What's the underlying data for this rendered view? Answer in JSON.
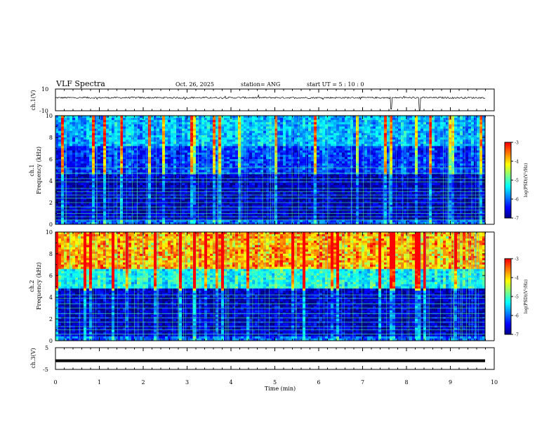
{
  "header": {
    "title": "VLF Spectra",
    "date": "Oct. 26, 2025",
    "station": "station= ANG",
    "start_ut": "start  UT =   5  : 10 : 0"
  },
  "colors": {
    "colormap": [
      "#000080",
      "#0000ff",
      "#0080ff",
      "#00ffff",
      "#80ff80",
      "#ffff00",
      "#ff8000",
      "#ff0000",
      "#ffffff"
    ],
    "line": "#000000"
  },
  "chart_data": [
    {
      "id": "ch1-waveform",
      "type": "line",
      "ylabel": "ch.1(V)",
      "ylim": [
        -10,
        10
      ],
      "yticks": [
        "10",
        "-10"
      ],
      "baseline": 2,
      "xlim": [
        0,
        10
      ]
    },
    {
      "id": "ch1-spectrogram",
      "type": "heatmap",
      "ylabel_top": "ch.1",
      "ylabel": "Frequency  (kHz)",
      "ylim": [
        0,
        10
      ],
      "yticks": [
        "0",
        "2",
        "4",
        "6",
        "8",
        "10"
      ],
      "xlim": [
        0,
        10
      ],
      "colorbar": {
        "label": "log(PSD)(V²/Hz)",
        "range": [
          -7,
          -3
        ],
        "ticks": [
          "-3",
          "-4",
          "-5",
          "-6",
          "-7"
        ]
      },
      "band_levels": [
        {
          "f_from": 0,
          "f_to": 0.5,
          "level": 0.25
        },
        {
          "f_from": 0.5,
          "f_to": 4.6,
          "level": 0.06
        },
        {
          "f_from": 4.6,
          "f_to": 7.2,
          "level": 0.2
        },
        {
          "f_from": 7.2,
          "f_to": 10,
          "level": 0.35
        }
      ],
      "tones_khz": [
        0.4,
        0.7,
        1.0,
        1.3,
        1.6,
        2.0,
        2.4,
        2.7,
        3.0,
        3.3,
        3.9,
        4.2,
        4.7,
        5.2
      ]
    },
    {
      "id": "ch2-spectrogram",
      "type": "heatmap",
      "ylabel_top": "ch.2",
      "ylabel": "Frequency  (kHz)",
      "ylim": [
        0,
        10
      ],
      "yticks": [
        "0",
        "2",
        "4",
        "6",
        "8",
        "10"
      ],
      "xlim": [
        0,
        10
      ],
      "colorbar": {
        "label": "log(PSD)(V²/Hz)",
        "range": [
          -7,
          -3
        ],
        "ticks": [
          "-3",
          "-4",
          "-5",
          "-6",
          "-7"
        ]
      },
      "band_levels": [
        {
          "f_from": 0,
          "f_to": 0.5,
          "level": 0.25
        },
        {
          "f_from": 0.5,
          "f_to": 4.8,
          "level": 0.08
        },
        {
          "f_from": 4.8,
          "f_to": 6.5,
          "level": 0.45
        },
        {
          "f_from": 6.5,
          "f_to": 10,
          "level": 0.75
        }
      ],
      "tones_khz": [
        0.6,
        1.0,
        1.3,
        1.7,
        2.1,
        2.5,
        3.0,
        3.4,
        3.9,
        4.2
      ]
    },
    {
      "id": "ch3-waveform",
      "type": "line",
      "ylabel": "ch.3(V)",
      "ylim": [
        -5,
        5
      ],
      "yticks": [
        "5",
        "-5"
      ],
      "baseline": -1,
      "xlim": [
        0,
        10
      ]
    }
  ],
  "x_axis": {
    "xlabel": "Time  (min)",
    "ticks": [
      "0",
      "1",
      "2",
      "3",
      "4",
      "5",
      "6",
      "7",
      "8",
      "9",
      "10"
    ]
  }
}
